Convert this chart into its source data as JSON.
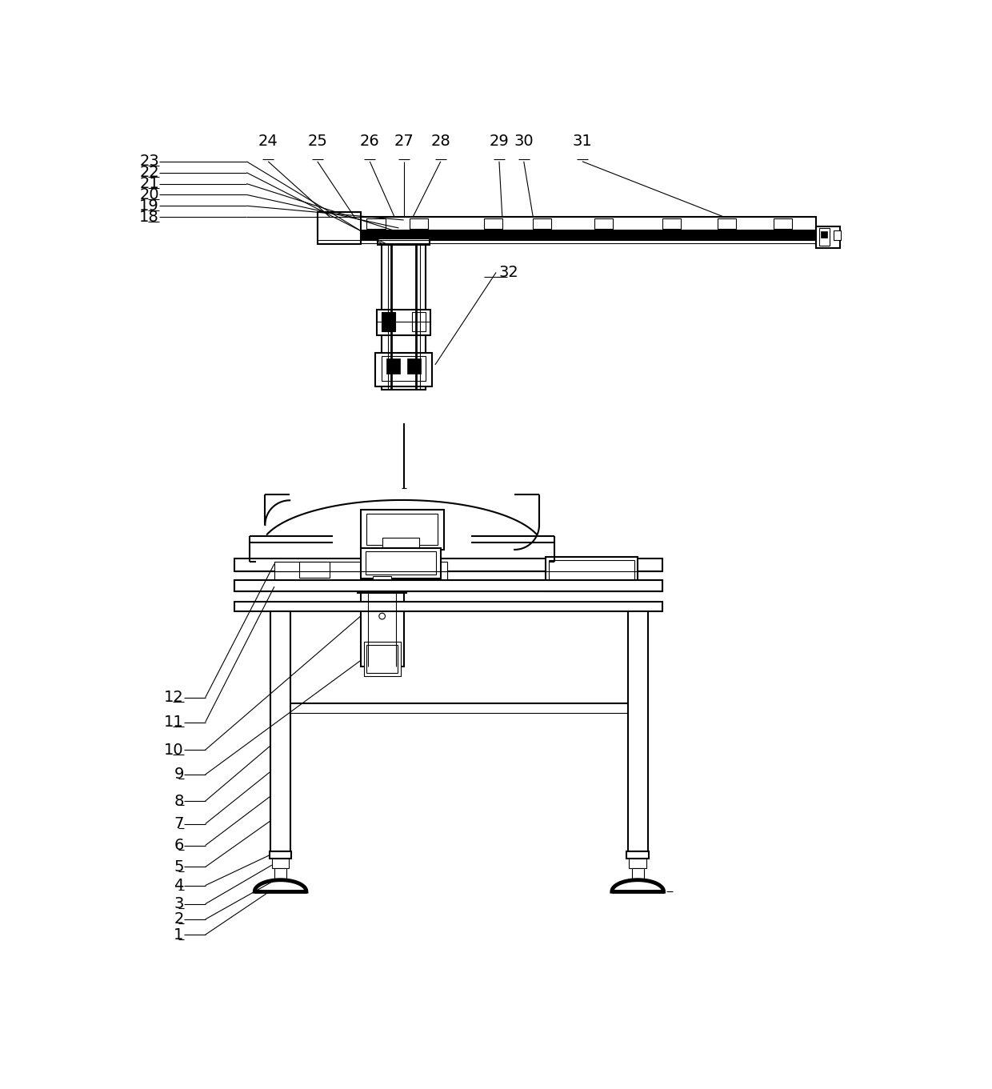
{
  "background": "#ffffff",
  "line_color": "#000000",
  "label_fontsize": 14,
  "lw_thin": 0.8,
  "lw_medium": 1.5,
  "lw_thick": 3.5,
  "label_32": "32",
  "top_labels": [
    "18",
    "19",
    "20",
    "21",
    "22",
    "23",
    "24",
    "25",
    "26",
    "27",
    "28",
    "29",
    "30",
    "31"
  ],
  "left_labels": [
    "1",
    "2",
    "3",
    "4",
    "5",
    "6",
    "7",
    "8",
    "9",
    "10",
    "11",
    "12"
  ]
}
